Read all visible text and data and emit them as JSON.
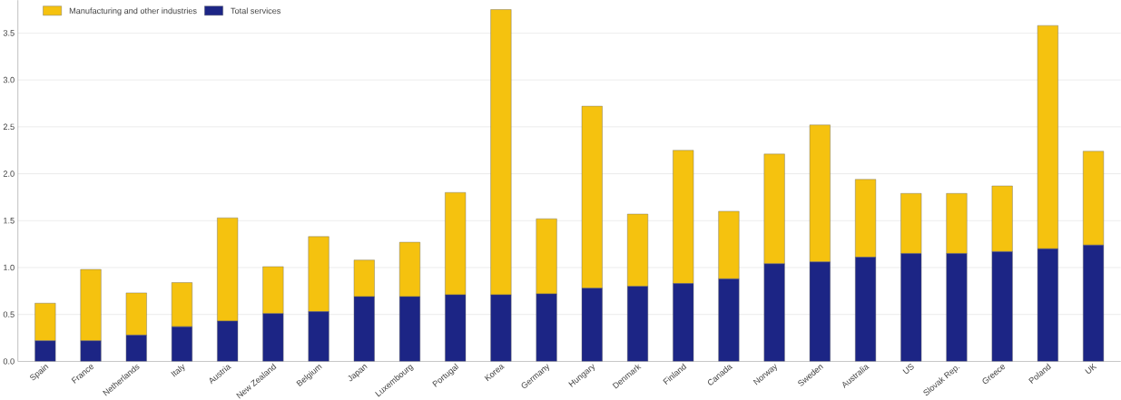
{
  "chart_data": {
    "type": "bar",
    "stacked": true,
    "categories": [
      "Spain",
      "France",
      "Netherlands",
      "Italy",
      "Austria",
      "New Zealand",
      "Belgium",
      "Japan",
      "Luxembourg",
      "Portugal",
      "Korea",
      "Germany",
      "Hungary",
      "Denmark",
      "Finland",
      "Canada",
      "Norway",
      "Sweden",
      "Australia",
      "US",
      "Slovak Rep.",
      "Greece",
      "Poland",
      "UK"
    ],
    "series": [
      {
        "name": "Total services",
        "color": "#1c2585",
        "values": [
          0.22,
          0.22,
          0.28,
          0.37,
          0.43,
          0.51,
          0.53,
          0.69,
          0.69,
          0.71,
          0.71,
          0.72,
          0.78,
          0.8,
          0.83,
          0.88,
          1.04,
          1.06,
          1.11,
          1.15,
          1.15,
          1.17,
          1.2,
          1.24
        ]
      },
      {
        "name": "Manufacturing and other industries",
        "color": "#f5c20f",
        "values": [
          0.4,
          0.76,
          0.45,
          0.47,
          1.1,
          0.5,
          0.8,
          0.39,
          0.58,
          1.09,
          3.04,
          0.8,
          1.94,
          0.77,
          1.42,
          0.72,
          1.17,
          1.46,
          0.83,
          0.64,
          0.64,
          0.7,
          2.38,
          1.0
        ]
      }
    ],
    "ylim": [
      0,
      3.85
    ],
    "yticks": [
      {
        "value": 0,
        "label": "0.0"
      },
      0.5,
      {
        "value": 1,
        "label": "1.0"
      },
      1.5,
      {
        "value": 2,
        "label": "2.0"
      },
      2.5,
      {
        "value": 3,
        "label": "3.0"
      },
      3.5
    ],
    "grid": "y",
    "legend": "top left"
  }
}
